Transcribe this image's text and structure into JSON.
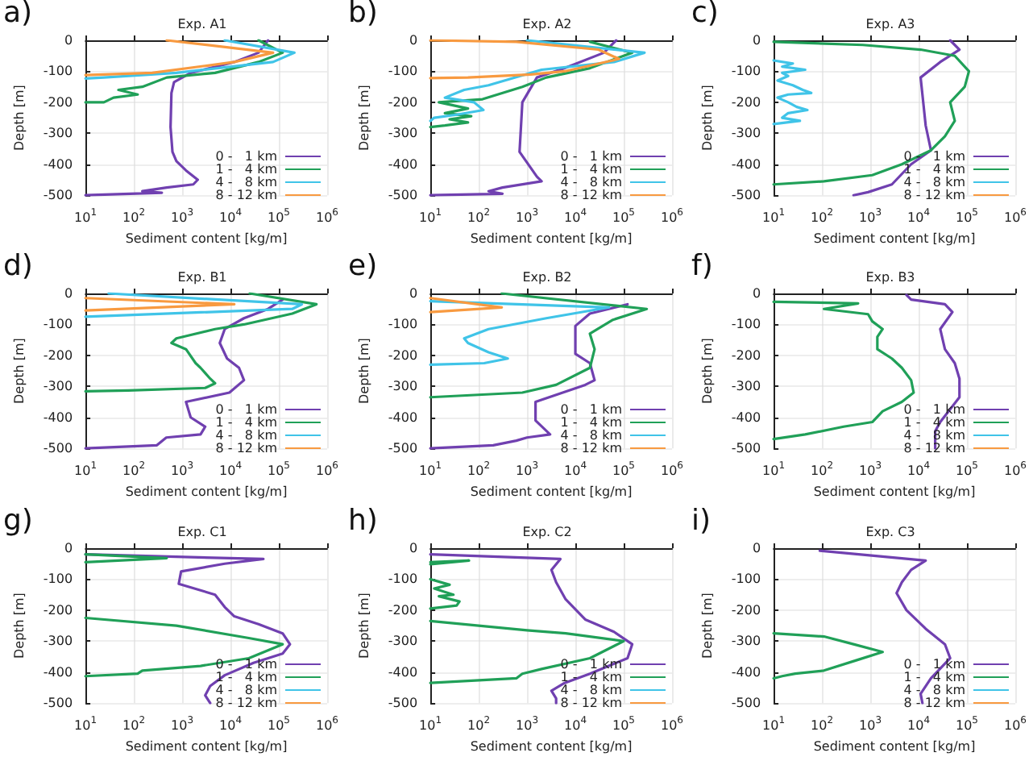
{
  "chart_data": [
    {
      "type": "line",
      "title": "Exp. A1",
      "annotations": [
        "a)"
      ],
      "xlabel": "Sediment content [kg/m]",
      "ylabel": "Depth [m]",
      "log": "x",
      "grid": true,
      "legend": "bottom right",
      "marker": "none",
      "line_style": "solid",
      "xlim": [
        10,
        1000000
      ],
      "ylim": [
        -500,
        0
      ],
      "xticks": [
        {
          "value": 10,
          "label": "10$^{1}$"
        },
        {
          "value": 100,
          "label": "10$^{2}$"
        },
        {
          "value": 1000,
          "label": "10$^{3}$"
        },
        {
          "value": 10000,
          "label": "10$^{4}$"
        },
        {
          "value": 100000,
          "label": "10$^{5}$"
        },
        {
          "value": 1000000,
          "label": "10$^{6}$"
        }
      ],
      "yticks": [
        0,
        -100,
        -200,
        -300,
        -400,
        -500
      ],
      "series": [
        {
          "name": "0 -   1 km",
          "color": "#7040b0",
          "x": [
            60000,
            38000,
            12000,
            1500,
            680,
            600,
            575,
            630,
            760,
            1200,
            2100,
            1700,
            480,
            150,
            380,
            10
          ],
          "values": [
            0,
            -40,
            -70,
            -105,
            -135,
            -170,
            -280,
            -360,
            -390,
            -420,
            -450,
            -465,
            -475,
            -487,
            -492,
            -500
          ]
        },
        {
          "name": "1 -   4 km",
          "color": "#20a058",
          "x": [
            38000,
            120000,
            38000,
            4800,
            480,
            150,
            48,
            120,
            38,
            24,
            10
          ],
          "values": [
            0,
            -40,
            -70,
            -105,
            -120,
            -150,
            -160,
            -175,
            -185,
            -200,
            -200
          ]
        },
        {
          "name": "4 -   8 km",
          "color": "#40c4e8",
          "x": [
            7600,
            210000,
            76000,
            760,
            24,
            10
          ],
          "values": [
            0,
            -40,
            -70,
            -105,
            -120,
            -123
          ]
        },
        {
          "name": "8 - 12 km",
          "color": "#f89a40",
          "x": [
            480,
            76000,
            12000,
            240,
            10
          ],
          "values": [
            0,
            -40,
            -70,
            -105,
            -112
          ]
        }
      ]
    },
    {
      "type": "line",
      "title": "Exp. A2",
      "annotations": [
        "b)"
      ],
      "xlabel": "Sediment content [kg/m]",
      "ylabel": "Depth [m]",
      "log": "x",
      "grid": true,
      "legend": "bottom right",
      "marker": "none",
      "line_style": "solid",
      "xlim": [
        10,
        1000000
      ],
      "ylim": [
        -500,
        0
      ],
      "xticks": [
        {
          "value": 10,
          "label": "10$^{1}$"
        },
        {
          "value": 100,
          "label": "10$^{2}$"
        },
        {
          "value": 1000,
          "label": "10$^{3}$"
        },
        {
          "value": 10000,
          "label": "10$^{4}$"
        },
        {
          "value": 100000,
          "label": "10$^{5}$"
        },
        {
          "value": 1000000,
          "label": "10$^{6}$"
        }
      ],
      "yticks": [
        0,
        -100,
        -200,
        -300,
        -400,
        -500
      ],
      "series": [
        {
          "name": "0 -   1 km",
          "color": "#7040b0",
          "x": [
            70000,
            39000,
            6000,
            1600,
            800,
            700,
            1600,
            2000,
            310,
            160,
            310,
            10
          ],
          "values": [
            0,
            -40,
            -90,
            -120,
            -200,
            -360,
            -440,
            -455,
            -475,
            -487,
            -495,
            -500
          ]
        },
        {
          "name": "1 -   4 km",
          "color": "#20a058",
          "x": [
            20000,
            150000,
            20000,
            2500,
            800,
            120,
            15,
            60,
            20,
            70,
            25,
            60,
            20,
            10
          ],
          "values": [
            -5,
            -40,
            -90,
            -120,
            -150,
            -190,
            -200,
            -220,
            -235,
            -245,
            -255,
            -265,
            -275,
            -280
          ]
        },
        {
          "name": "4 -   8 km",
          "color": "#40c4e8",
          "x": [
            1000,
            270000,
            63000,
            2000,
            160,
            50,
            20,
            80,
            125,
            35,
            12,
            10
          ],
          "values": [
            0,
            -40,
            -70,
            -95,
            -145,
            -160,
            -185,
            -200,
            -225,
            -240,
            -250,
            -260
          ]
        },
        {
          "name": "8 - 12 km",
          "color": "#f89a40",
          "x": [
            10,
            600,
            30000,
            80000,
            6000,
            1200,
            60,
            10
          ],
          "values": [
            0,
            -5,
            -30,
            -60,
            -100,
            -110,
            -120,
            -122
          ]
        }
      ]
    },
    {
      "type": "line",
      "title": "Exp. A3",
      "annotations": [
        "c)"
      ],
      "xlabel": "Sediment content [kg/m]",
      "ylabel": "Depth [m]",
      "log": "x",
      "grid": true,
      "legend": "bottom right",
      "marker": "none",
      "line_style": "solid",
      "xlim": [
        10,
        1000000
      ],
      "ylim": [
        -500,
        0
      ],
      "xticks": [
        {
          "value": 10,
          "label": "10$^{1}$"
        },
        {
          "value": 100,
          "label": "10$^{2}$"
        },
        {
          "value": 1000,
          "label": "10$^{3}$"
        },
        {
          "value": 10000,
          "label": "10$^{4}$"
        },
        {
          "value": 100000,
          "label": "10$^{5}$"
        },
        {
          "value": 1000000,
          "label": "10$^{6}$"
        }
      ],
      "yticks": [
        0,
        -100,
        -200,
        -300,
        -400,
        -500
      ],
      "series": [
        {
          "name": "0 -   1 km",
          "color": "#7040b0",
          "x": [
            45000,
            70000,
            28000,
            11000,
            14000,
            18000,
            7000,
            2800,
            900,
            450
          ],
          "values": [
            0,
            -30,
            -70,
            -120,
            -275,
            -355,
            -400,
            -465,
            -490,
            -500
          ]
        },
        {
          "name": "1 -   4 km",
          "color": "#20a058",
          "x": [
            10,
            700,
            11000,
            56000,
            110000,
            90000,
            45000,
            56000,
            35000,
            18000,
            4500,
            1100,
            110,
            10
          ],
          "values": [
            -5,
            -15,
            -30,
            -50,
            -100,
            -150,
            -200,
            -260,
            -310,
            -355,
            -400,
            -435,
            -455,
            -465
          ]
        },
        {
          "name": "4 -   8 km",
          "color": "#40c4e8",
          "x": [
            10,
            25,
            15,
            45,
            15,
            20,
            12,
            25,
            40,
            60,
            20,
            12,
            20,
            30,
            50,
            20,
            15,
            35,
            10
          ],
          "values": [
            -65,
            -75,
            -85,
            -95,
            -105,
            -115,
            -130,
            -145,
            -160,
            -170,
            -175,
            -185,
            -200,
            -215,
            -225,
            -235,
            -250,
            -260,
            -270
          ]
        },
        {
          "name": "8 - 12 km",
          "color": "#f89a40"
        }
      ]
    },
    {
      "type": "line",
      "title": "Exp. B1",
      "annotations": [
        "d)"
      ],
      "xlabel": "Sediment content [kg/m]",
      "ylabel": "Depth [m]",
      "log": "x",
      "grid": true,
      "legend": "bottom right",
      "marker": "none",
      "line_style": "solid",
      "xlim": [
        10,
        1000000
      ],
      "ylim": [
        -500,
        0
      ],
      "xticks": [
        {
          "value": 10,
          "label": "10$^{1}$"
        },
        {
          "value": 100,
          "label": "10$^{2}$"
        },
        {
          "value": 1000,
          "label": "10$^{3}$"
        },
        {
          "value": 10000,
          "label": "10$^{4}$"
        },
        {
          "value": 100000,
          "label": "10$^{5}$"
        },
        {
          "value": 1000000,
          "label": "10$^{6}$"
        }
      ],
      "yticks": [
        0,
        -100,
        -200,
        -300,
        -400,
        -500
      ],
      "series": [
        {
          "name": "0 -   1 km",
          "color": "#7040b0",
          "x": [
            120000,
            60000,
            19000,
            7600,
            6000,
            8500,
            15000,
            19000,
            9500,
            1200,
            1500,
            3000,
            2400,
            470,
            300,
            10
          ],
          "values": [
            -20,
            -50,
            -80,
            -115,
            -160,
            -210,
            -240,
            -280,
            -320,
            -350,
            -400,
            -430,
            -455,
            -465,
            -490,
            -500
          ]
        },
        {
          "name": "1 -   4 km",
          "color": "#20a058",
          "x": [
            25000,
            600000,
            190000,
            19000,
            4800,
            760,
            600,
            1200,
            1900,
            2400,
            3800,
            4800,
            3000,
            76,
            10
          ],
          "values": [
            0,
            -35,
            -65,
            -100,
            -115,
            -145,
            -160,
            -180,
            -225,
            -240,
            -275,
            -290,
            -305,
            -313,
            -316
          ]
        },
        {
          "name": "4 -   8 km",
          "color": "#40c4e8",
          "x": [
            30,
            300000,
            190000,
            10
          ],
          "values": [
            0,
            -35,
            -50,
            -75
          ]
        },
        {
          "name": "8 - 12 km",
          "color": "#f89a40",
          "x": [
            10,
            12000,
            10
          ],
          "values": [
            -15,
            -35,
            -55
          ]
        }
      ]
    },
    {
      "type": "line",
      "title": "Exp. B2",
      "annotations": [
        "e)"
      ],
      "xlabel": "Sediment content [kg/m]",
      "ylabel": "Depth [m]",
      "log": "x",
      "grid": true,
      "legend": "bottom right",
      "marker": "none",
      "line_style": "solid",
      "xlim": [
        10,
        1000000
      ],
      "ylim": [
        -500,
        0
      ],
      "xticks": [
        {
          "value": 10,
          "label": "10$^{1}$"
        },
        {
          "value": 100,
          "label": "10$^{2}$"
        },
        {
          "value": 1000,
          "label": "10$^{3}$"
        },
        {
          "value": 10000,
          "label": "10$^{4}$"
        },
        {
          "value": 100000,
          "label": "10$^{5}$"
        },
        {
          "value": 1000000,
          "label": "10$^{6}$"
        }
      ],
      "yticks": [
        0,
        -100,
        -200,
        -300,
        -400,
        -500
      ],
      "series": [
        {
          "name": "0 -   1 km",
          "color": "#7040b0",
          "x": [
            120000,
            20000,
            10000,
            10000,
            20000,
            25000,
            16000,
            1500,
            1500,
            3000,
            1000,
            600,
            200,
            10
          ],
          "values": [
            -35,
            -65,
            -105,
            -195,
            -225,
            -280,
            -295,
            -350,
            -410,
            -455,
            -465,
            -475,
            -490,
            -500
          ]
        },
        {
          "name": "1 -   4 km",
          "color": "#20a058",
          "x": [
            300,
            300000,
            60000,
            20000,
            25000,
            20000,
            4000,
            800,
            10
          ],
          "values": [
            0,
            -50,
            -85,
            -130,
            -180,
            -240,
            -295,
            -320,
            -335
          ]
        },
        {
          "name": "4 -   8 km",
          "color": "#40c4e8",
          "x": [
            10,
            50000,
            2500,
            160,
            50,
            60,
            160,
            400,
            130,
            10
          ],
          "values": [
            -25,
            -45,
            -80,
            -115,
            -145,
            -160,
            -190,
            -210,
            -225,
            -230
          ]
        },
        {
          "name": "8 - 12 km",
          "color": "#f89a40",
          "x": [
            10,
            300,
            10
          ],
          "values": [
            -15,
            -45,
            -60
          ]
        }
      ]
    },
    {
      "type": "line",
      "title": "Exp. B3",
      "annotations": [
        "f)"
      ],
      "xlabel": "Sediment content [kg/m]",
      "ylabel": "Depth [m]",
      "log": "x",
      "grid": true,
      "legend": "bottom right",
      "marker": "none",
      "line_style": "solid",
      "xlim": [
        10,
        1000000
      ],
      "ylim": [
        -500,
        0
      ],
      "xticks": [
        {
          "value": 10,
          "label": "10$^{1}$"
        },
        {
          "value": 100,
          "label": "10$^{2}$"
        },
        {
          "value": 1000,
          "label": "10$^{3}$"
        },
        {
          "value": 10000,
          "label": "10$^{4}$"
        },
        {
          "value": 100000,
          "label": "10$^{5}$"
        },
        {
          "value": 1000000,
          "label": "10$^{6}$"
        }
      ],
      "yticks": [
        0,
        -100,
        -200,
        -300,
        -400,
        -500
      ],
      "series": [
        {
          "name": "0 -   1 km",
          "color": "#7040b0",
          "x": [
            5600,
            7000,
            35000,
            50000,
            28000,
            35000,
            56000,
            70000,
            70000,
            28000,
            22000,
            22000,
            22000
          ],
          "values": [
            -5,
            -20,
            -35,
            -60,
            -115,
            -180,
            -225,
            -275,
            -335,
            -415,
            -445,
            -480,
            -500
          ]
        },
        {
          "name": "1 -   4 km",
          "color": "#20a058",
          "x": [
            10,
            560,
            110,
            900,
            1100,
            1800,
            1400,
            1400,
            2800,
            4500,
            7000,
            7900,
            4500,
            1800,
            1100,
            280,
            45,
            10
          ],
          "values": [
            -27,
            -32,
            -50,
            -67,
            -90,
            -115,
            -140,
            -180,
            -210,
            -240,
            -280,
            -320,
            -350,
            -380,
            -415,
            -430,
            -455,
            -470
          ]
        },
        {
          "name": "4 -   8 km",
          "color": "#40c4e8"
        },
        {
          "name": "8 - 12 km",
          "color": "#f89a40"
        }
      ]
    },
    {
      "type": "line",
      "title": "Exp. C1",
      "annotations": [
        "g)"
      ],
      "xlabel": "Sediment content [kg/m]",
      "ylabel": "Depth [m]",
      "log": "x",
      "grid": true,
      "legend": "bottom right",
      "marker": "none",
      "line_style": "solid",
      "xlim": [
        10,
        1000000
      ],
      "ylim": [
        -500,
        0
      ],
      "xticks": [
        {
          "value": 10,
          "label": "10$^{1}$"
        },
        {
          "value": 100,
          "label": "10$^{2}$"
        },
        {
          "value": 1000,
          "label": "10$^{3}$"
        },
        {
          "value": 10000,
          "label": "10$^{4}$"
        },
        {
          "value": 100000,
          "label": "10$^{5}$"
        },
        {
          "value": 1000000,
          "label": "10$^{6}$"
        }
      ],
      "yticks": [
        0,
        -100,
        -200,
        -300,
        -400,
        -500
      ],
      "series": [
        {
          "name": "0 -   1 km",
          "color": "#7040b0",
          "x": [
            10,
            48000,
            7600,
            950,
            850,
            4800,
            7600,
            12000,
            38000,
            120000,
            170000,
            120000,
            30000,
            7600,
            3800,
            3000,
            3800
          ],
          "values": [
            -20,
            -35,
            -50,
            -75,
            -115,
            -150,
            -190,
            -220,
            -245,
            -275,
            -310,
            -340,
            -370,
            -410,
            -445,
            -475,
            -500
          ]
        },
        {
          "name": "1 -   4 km",
          "color": "#20a058",
          "x": [
            10,
            480,
            10,
            null,
            10,
            760,
            24000,
            120000,
            24000,
            2400,
            150,
            120,
            10
          ],
          "values": [
            -20,
            -32,
            -45,
            null,
            -225,
            -250,
            -290,
            -310,
            -355,
            -380,
            -395,
            -405,
            -413
          ]
        },
        {
          "name": "4 -   8 km",
          "color": "#40c4e8"
        },
        {
          "name": "8 - 12 km",
          "color": "#f89a40"
        }
      ]
    },
    {
      "type": "line",
      "title": "Exp. C2",
      "annotations": [
        "h)"
      ],
      "xlabel": "Sediment content [kg/m]",
      "ylabel": "Depth [m]",
      "log": "x",
      "grid": true,
      "legend": "bottom right",
      "marker": "none",
      "line_style": "solid",
      "xlim": [
        10,
        1000000
      ],
      "ylim": [
        -500,
        0
      ],
      "xticks": [
        {
          "value": 10,
          "label": "10$^{1}$"
        },
        {
          "value": 100,
          "label": "10$^{2}$"
        },
        {
          "value": 1000,
          "label": "10$^{3}$"
        },
        {
          "value": 10000,
          "label": "10$^{4}$"
        },
        {
          "value": 100000,
          "label": "10$^{5}$"
        },
        {
          "value": 1000000,
          "label": "10$^{6}$"
        }
      ],
      "yticks": [
        0,
        -100,
        -200,
        -300,
        -400,
        -500
      ],
      "series": [
        {
          "name": "0 -   1 km",
          "color": "#7040b0",
          "x": [
            10,
            4900,
            3200,
            4000,
            6300,
            16000,
            63000,
            150000,
            120000,
            20000,
            6000,
            3200,
            4000,
            4000
          ],
          "values": [
            -20,
            -35,
            -70,
            -110,
            -165,
            -230,
            -270,
            -310,
            -355,
            -405,
            -435,
            -460,
            -485,
            -500
          ]
        },
        {
          "name": "1 -   4 km",
          "color": "#20a058",
          "x": [
            10,
            63,
            10,
            null,
            10,
            25,
            12,
            30,
            15,
            40,
            35,
            10,
            null,
            10,
            1000,
            6300,
            100000,
            20000,
            2000,
            800,
            600,
            10
          ],
          "values": [
            -45,
            -40,
            -52,
            null,
            -100,
            -118,
            -130,
            -150,
            -155,
            -172,
            -185,
            -195,
            null,
            -235,
            -265,
            -275,
            -300,
            -355,
            -390,
            -405,
            -420,
            -435
          ]
        },
        {
          "name": "4 -   8 km",
          "color": "#40c4e8"
        },
        {
          "name": "8 - 12 km",
          "color": "#f89a40"
        }
      ]
    },
    {
      "type": "line",
      "title": "Exp. C3",
      "annotations": [
        "i)"
      ],
      "xlabel": "Sediment content [kg/m]",
      "ylabel": "Depth [m]",
      "log": "x",
      "grid": true,
      "legend": "bottom right",
      "marker": "none",
      "line_style": "solid",
      "xlim": [
        10,
        1000000
      ],
      "ylim": [
        -500,
        0
      ],
      "xticks": [
        {
          "value": 10,
          "label": "10$^{1}$"
        },
        {
          "value": 100,
          "label": "10$^{2}$"
        },
        {
          "value": 1000,
          "label": "10$^{3}$"
        },
        {
          "value": 10000,
          "label": "10$^{4}$"
        },
        {
          "value": 100000,
          "label": "10$^{5}$"
        },
        {
          "value": 1000000,
          "label": "10$^{6}$"
        }
      ],
      "yticks": [
        0,
        -100,
        -200,
        -300,
        -400,
        -500
      ],
      "series": [
        {
          "name": "0 -   1 km",
          "color": "#7040b0",
          "x": [
            90,
            14000,
            7000,
            4500,
            3500,
            5600,
            14000,
            35000,
            45000,
            18000,
            11000,
            12000
          ],
          "values": [
            -8,
            -40,
            -70,
            -110,
            -145,
            -200,
            -260,
            -310,
            -355,
            -420,
            -470,
            -500
          ]
        },
        {
          "name": "1 -   4 km",
          "color": "#20a058",
          "x": [
            10,
            110,
            450,
            1800,
            560,
            110,
            28,
            15,
            10
          ],
          "values": [
            -275,
            -285,
            -310,
            -335,
            -360,
            -395,
            -405,
            -413,
            -420
          ]
        },
        {
          "name": "4 -   8 km",
          "color": "#40c4e8"
        },
        {
          "name": "8 - 12 km",
          "color": "#f89a40"
        }
      ]
    }
  ]
}
